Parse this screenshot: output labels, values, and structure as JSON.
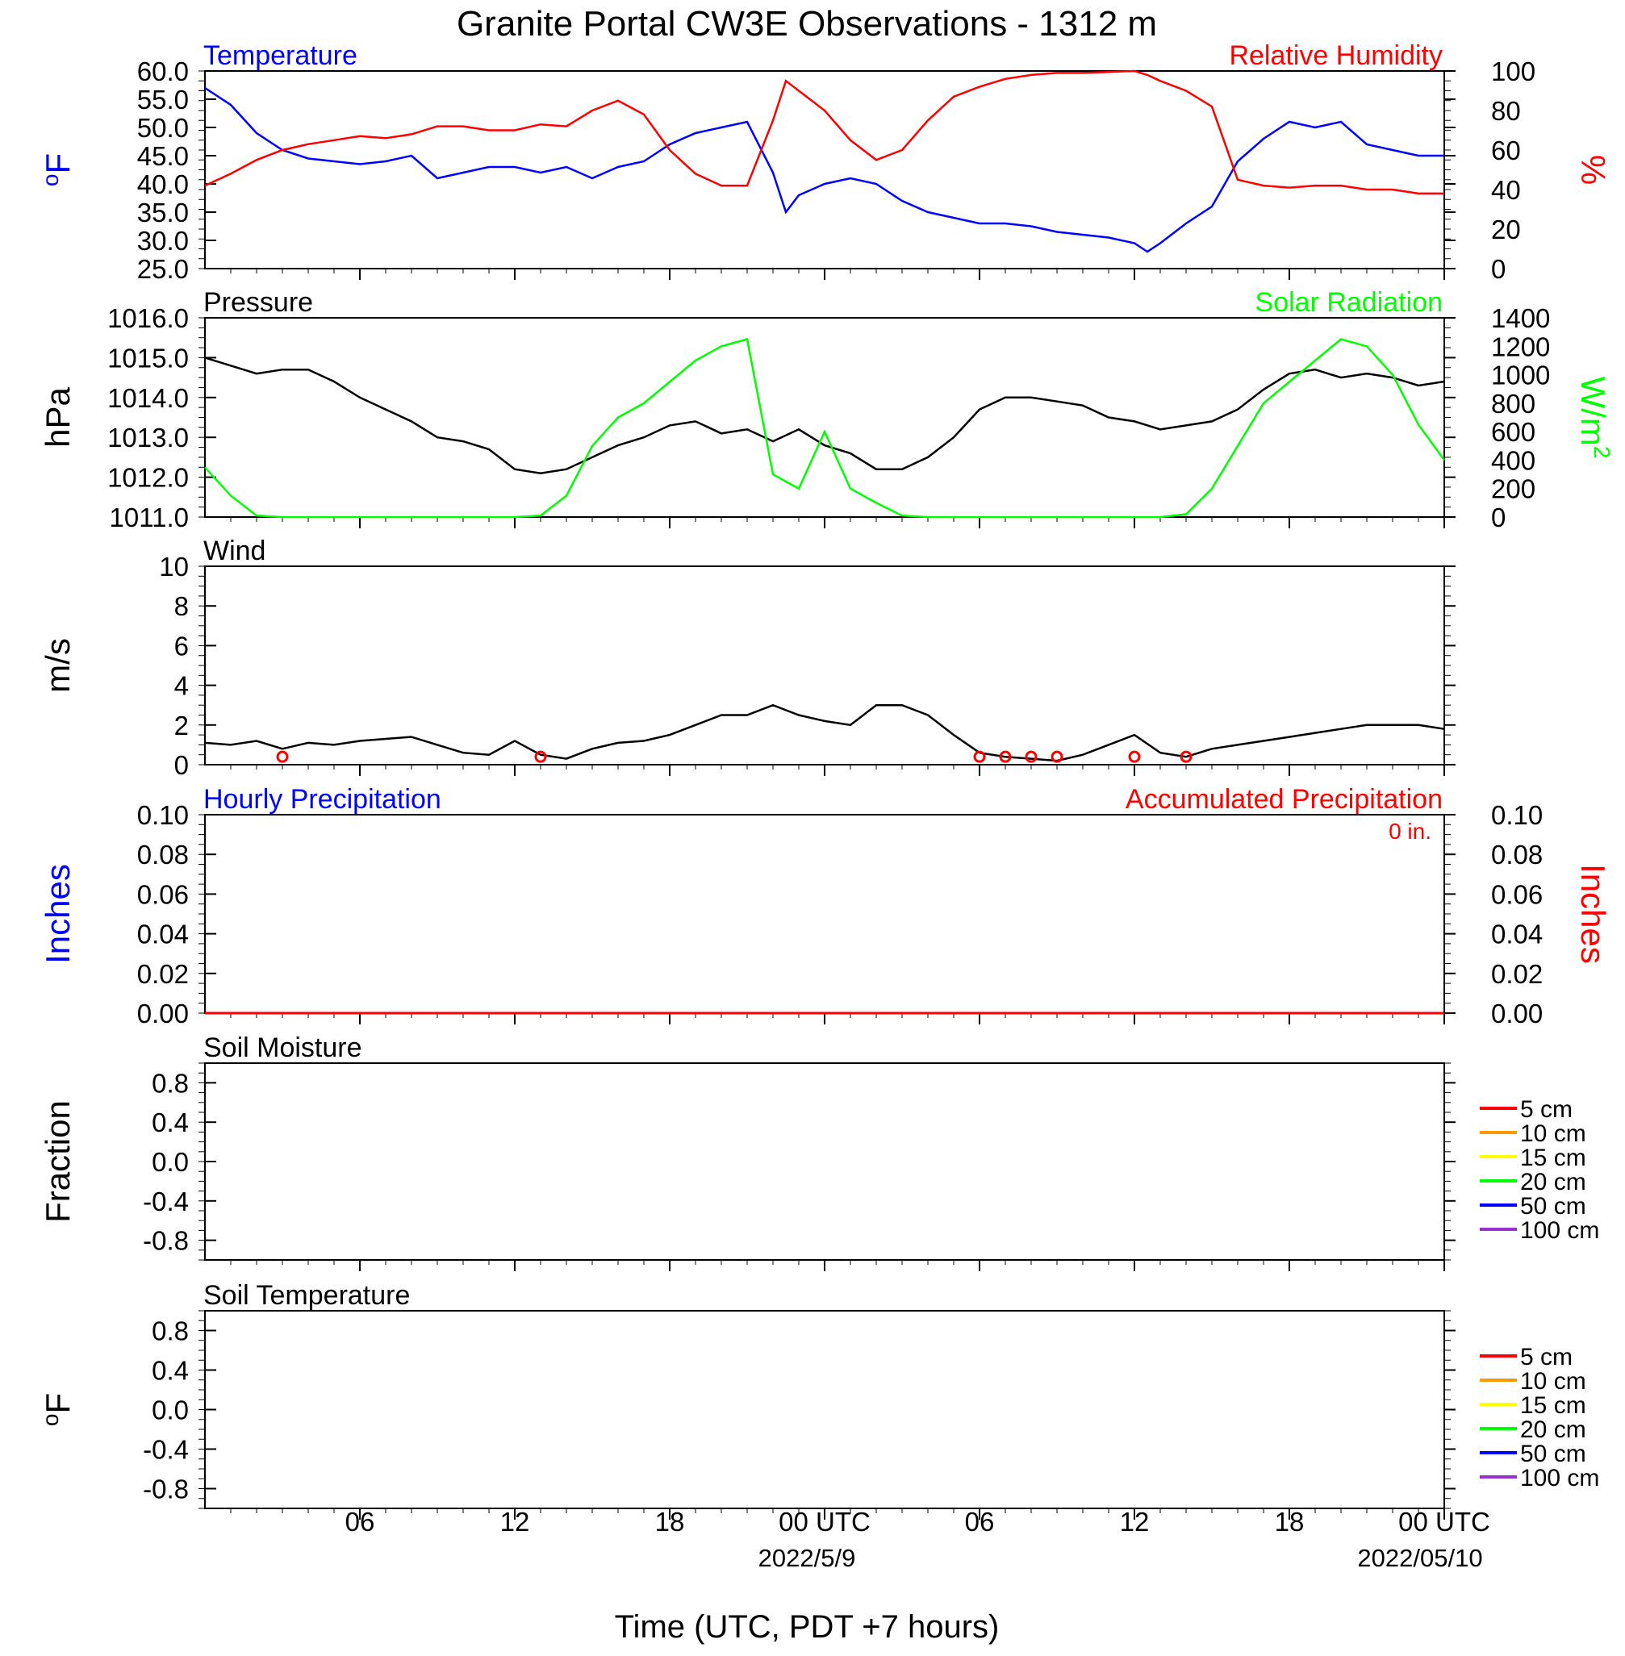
{
  "figure": {
    "title": "Granite Portal CW3E Observations - 1312 m",
    "xlabel": "Time (UTC, PDT +7 hours)",
    "date_labels": [
      "2022/5/9",
      "2022/05/10"
    ]
  },
  "x_axis": {
    "ticks": [
      {
        "hour": 6,
        "label": "06"
      },
      {
        "hour": 12,
        "label": "12"
      },
      {
        "hour": 18,
        "label": "18"
      },
      {
        "hour": 24,
        "label": "00 UTC"
      },
      {
        "hour": 30,
        "label": "06"
      },
      {
        "hour": 36,
        "label": "12"
      },
      {
        "hour": 42,
        "label": "18"
      },
      {
        "hour": 48,
        "label": "00 UTC"
      }
    ],
    "range_hours": [
      0,
      48
    ]
  },
  "colors": {
    "temperature": "#0000ff",
    "humidity": "#ff0000",
    "pressure": "#000000",
    "solar": "#00ff00",
    "wind_barb": "#ff0000",
    "accum": "#ff0000",
    "hourly": "#0000ff"
  },
  "chart_data": [
    {
      "id": "temp-rh",
      "type": "line",
      "left_title": "Temperature",
      "right_title": "Relative Humidity",
      "left_ylabel": "oF",
      "right_ylabel": "%",
      "left_ylim": [
        25,
        60
      ],
      "right_ylim": [
        0,
        100
      ],
      "left_ticks": [
        "60.0",
        "55.0",
        "50.0",
        "45.0",
        "40.0",
        "35.0",
        "30.0",
        "25.0"
      ],
      "right_ticks": [
        "100",
        "80",
        "60",
        "40",
        "20",
        "0"
      ],
      "x": [
        0,
        1,
        2,
        3,
        4,
        5,
        6,
        7,
        8,
        9,
        10,
        11,
        12,
        13,
        14,
        15,
        16,
        17,
        18,
        19,
        20,
        21,
        22,
        22.5,
        23,
        24,
        25,
        26,
        27,
        28,
        29,
        30,
        31,
        32,
        33,
        34,
        35,
        36,
        36.5,
        37,
        38,
        39,
        40,
        41,
        42,
        43,
        44,
        45,
        46,
        47,
        48
      ],
      "series": [
        {
          "name": "Temperature",
          "axis": "left",
          "values": [
            57,
            54,
            49,
            46,
            44.5,
            44,
            43.5,
            44,
            45,
            41,
            42,
            43,
            43,
            42,
            43,
            41,
            43,
            44,
            47,
            49,
            50,
            51,
            42,
            35,
            38,
            40,
            41,
            40,
            37,
            35,
            34,
            33,
            33,
            32.5,
            31.5,
            31,
            30.5,
            29.5,
            28,
            29.5,
            33,
            36,
            44,
            48,
            51,
            50,
            51,
            47,
            46,
            45,
            45
          ]
        },
        {
          "name": "Relative Humidity",
          "axis": "right",
          "values": [
            42,
            48,
            55,
            60,
            63,
            65,
            67,
            66,
            68,
            72,
            72,
            70,
            70,
            73,
            72,
            80,
            85,
            78,
            60,
            48,
            42,
            42,
            75,
            95,
            90,
            80,
            65,
            55,
            60,
            75,
            87,
            92,
            96,
            98,
            99,
            99,
            99.5,
            100,
            98,
            95,
            90,
            82,
            45,
            42,
            41,
            42,
            42,
            40,
            40,
            38,
            38
          ]
        }
      ]
    },
    {
      "id": "pressure-solar",
      "type": "line",
      "left_title": "Pressure",
      "right_title": "Solar Radiation",
      "left_ylabel": "hPa",
      "right_ylabel": "W/m2",
      "left_ylim": [
        1011,
        1016
      ],
      "right_ylim": [
        0,
        1400
      ],
      "left_ticks": [
        "1016.0",
        "1015.0",
        "1014.0",
        "1013.0",
        "1012.0",
        "1011.0"
      ],
      "right_ticks": [
        "1400",
        "1200",
        "1000",
        "800",
        "600",
        "400",
        "200",
        "0"
      ],
      "x": [
        0,
        1,
        2,
        3,
        4,
        5,
        6,
        7,
        8,
        9,
        10,
        11,
        12,
        13,
        14,
        15,
        16,
        17,
        18,
        19,
        20,
        21,
        22,
        23,
        24,
        25,
        26,
        27,
        28,
        29,
        30,
        31,
        32,
        33,
        34,
        35,
        36,
        37,
        38,
        39,
        40,
        41,
        42,
        43,
        44,
        45,
        46,
        47,
        48
      ],
      "series": [
        {
          "name": "Pressure",
          "axis": "left",
          "values": [
            1015,
            1014.8,
            1014.6,
            1014.7,
            1014.7,
            1014.4,
            1014,
            1013.7,
            1013.4,
            1013,
            1012.9,
            1012.7,
            1012.2,
            1012.1,
            1012.2,
            1012.5,
            1012.8,
            1013,
            1013.3,
            1013.4,
            1013.1,
            1013.2,
            1012.9,
            1013.2,
            1012.8,
            1012.6,
            1012.2,
            1012.2,
            1012.5,
            1013,
            1013.7,
            1014,
            1014,
            1013.9,
            1013.8,
            1013.5,
            1013.4,
            1013.2,
            1013.3,
            1013.4,
            1013.7,
            1014.2,
            1014.6,
            1014.7,
            1014.5,
            1014.6,
            1014.5,
            1014.3,
            1014.4
          ]
        },
        {
          "name": "Solar Radiation",
          "axis": "right",
          "values": [
            350,
            150,
            10,
            0,
            0,
            0,
            0,
            0,
            0,
            0,
            0,
            0,
            0,
            10,
            150,
            500,
            700,
            800,
            950,
            1100,
            1200,
            1250,
            300,
            200,
            600,
            200,
            100,
            10,
            0,
            0,
            0,
            0,
            0,
            0,
            0,
            0,
            0,
            0,
            20,
            200,
            500,
            800,
            950,
            1100,
            1250,
            1200,
            1000,
            650,
            400
          ]
        }
      ]
    },
    {
      "id": "wind",
      "type": "line",
      "left_title": "Wind",
      "left_ylabel": "m/s",
      "left_ylim": [
        0,
        10
      ],
      "left_ticks": [
        "10",
        "8",
        "6",
        "4",
        "2",
        "0"
      ],
      "x": [
        0,
        1,
        2,
        3,
        4,
        5,
        6,
        7,
        8,
        9,
        10,
        11,
        12,
        13,
        14,
        15,
        16,
        17,
        18,
        19,
        20,
        21,
        22,
        23,
        24,
        25,
        26,
        27,
        28,
        29,
        30,
        31,
        32,
        33,
        34,
        35,
        36,
        37,
        38,
        39,
        40,
        41,
        42,
        43,
        44,
        45,
        46,
        47,
        48
      ],
      "series": [
        {
          "name": "Wind",
          "axis": "left",
          "values": [
            1.1,
            1,
            1.2,
            0.8,
            1.1,
            1,
            1.2,
            1.3,
            1.4,
            1,
            0.6,
            0.5,
            1.2,
            0.5,
            0.3,
            0.8,
            1.1,
            1.2,
            1.5,
            2,
            2.5,
            2.5,
            3,
            2.5,
            2.2,
            2,
            3,
            3,
            2.5,
            1.5,
            0.6,
            0.4,
            0.3,
            0.2,
            0.5,
            1,
            1.5,
            0.6,
            0.4,
            0.8,
            1,
            1.2,
            1.4,
            1.6,
            1.8,
            2,
            2,
            2,
            1.8
          ]
        }
      ],
      "calm_barb_hours": [
        3,
        13,
        30,
        31,
        32,
        33,
        36,
        38
      ]
    },
    {
      "id": "precip",
      "type": "line",
      "left_title": "Hourly Precipitation",
      "right_title": "Accumulated Precipitation",
      "annotation": "0 in.",
      "left_ylabel": "Inches",
      "right_ylabel": "Inches",
      "left_ylim": [
        0,
        0.1
      ],
      "right_ylim": [
        0,
        0.1
      ],
      "left_ticks": [
        "0.10",
        "0.08",
        "0.06",
        "0.04",
        "0.02",
        "0.00"
      ],
      "right_ticks": [
        "0.10",
        "0.08",
        "0.06",
        "0.04",
        "0.02",
        "0.00"
      ],
      "x": [
        0,
        48
      ],
      "series": [
        {
          "name": "Accumulated Precipitation",
          "axis": "right",
          "values": [
            0,
            0
          ]
        }
      ]
    },
    {
      "id": "soil-moisture",
      "type": "line",
      "left_title": "Soil Moisture",
      "left_ylabel": "Fraction",
      "left_ylim": [
        -1,
        1
      ],
      "left_ticks": [
        "0.8",
        "0.4",
        "0.0",
        "-0.4",
        "-0.8"
      ],
      "legend": [
        {
          "label": "5 cm",
          "color": "#ff0000"
        },
        {
          "label": "10 cm",
          "color": "#ff9900"
        },
        {
          "label": "15 cm",
          "color": "#ffff00"
        },
        {
          "label": "20 cm",
          "color": "#00ff00"
        },
        {
          "label": "50 cm",
          "color": "#0000ff"
        },
        {
          "label": "100 cm",
          "color": "#9932cc"
        }
      ],
      "series": []
    },
    {
      "id": "soil-temp",
      "type": "line",
      "left_title": "Soil Temperature",
      "left_ylabel": "oF",
      "left_ylim": [
        -1,
        1
      ],
      "left_ticks": [
        "0.8",
        "0.4",
        "0.0",
        "-0.4",
        "-0.8"
      ],
      "legend": [
        {
          "label": "5 cm",
          "color": "#ff0000"
        },
        {
          "label": "10 cm",
          "color": "#ff9900"
        },
        {
          "label": "15 cm",
          "color": "#ffff00"
        },
        {
          "label": "20 cm",
          "color": "#00ff00"
        },
        {
          "label": "50 cm",
          "color": "#0000ff"
        },
        {
          "label": "100 cm",
          "color": "#9932cc"
        }
      ],
      "series": []
    }
  ]
}
